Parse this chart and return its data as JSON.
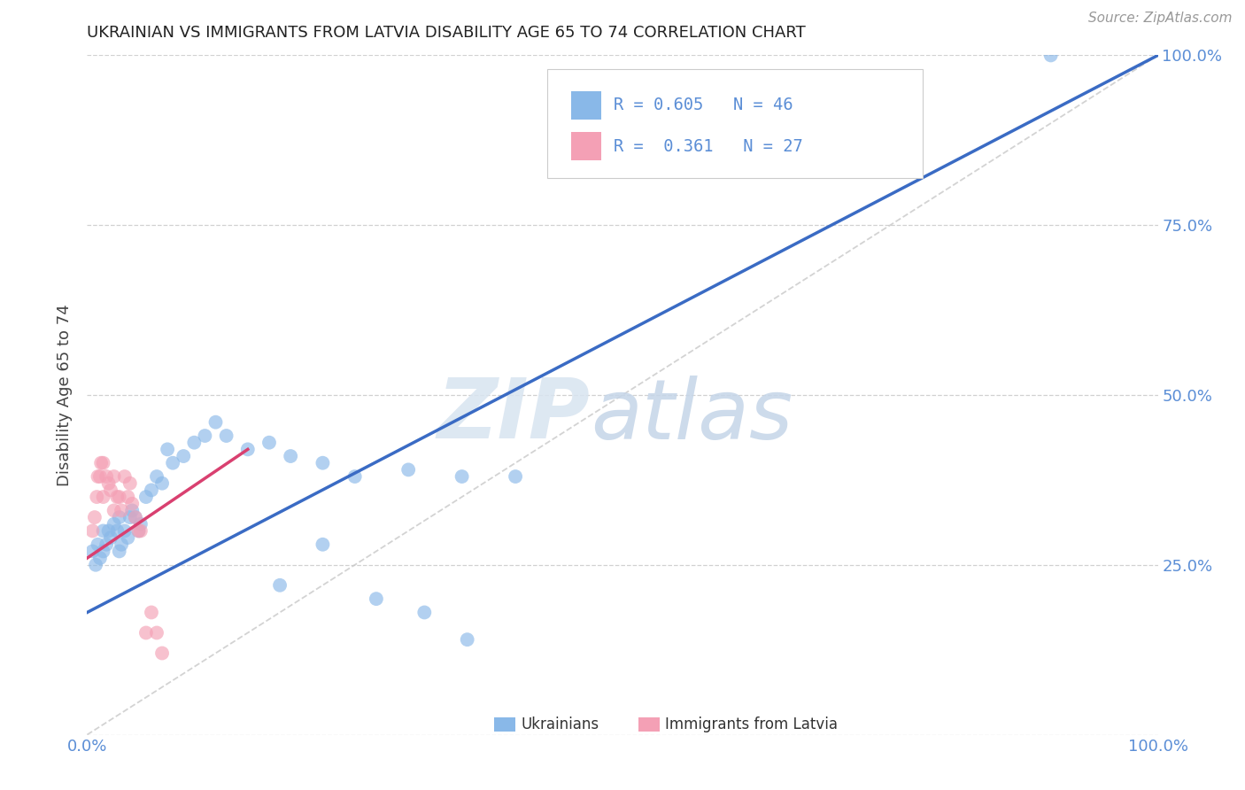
{
  "title": "UKRAINIAN VS IMMIGRANTS FROM LATVIA DISABILITY AGE 65 TO 74 CORRELATION CHART",
  "source": "Source: ZipAtlas.com",
  "ylabel": "Disability Age 65 to 74",
  "xlim": [
    0.0,
    1.0
  ],
  "ylim": [
    0.0,
    1.0
  ],
  "R_blue": 0.605,
  "N_blue": 46,
  "R_pink": 0.361,
  "N_pink": 27,
  "blue_color": "#89B8E8",
  "pink_color": "#F4A0B5",
  "blue_line_color": "#3A6BC4",
  "pink_line_color": "#D94070",
  "diagonal_color": "#C8C8C8",
  "legend_label_blue": "Ukrainians",
  "legend_label_pink": "Immigrants from Latvia",
  "watermark_zip": "ZIP",
  "watermark_atlas": "atlas",
  "background_color": "#FFFFFF",
  "grid_color": "#CCCCCC",
  "title_color": "#222222",
  "axis_label_color": "#444444",
  "tick_color": "#5B8ED6",
  "blue_x": [
    0.005,
    0.008,
    0.01,
    0.012,
    0.015,
    0.015,
    0.018,
    0.02,
    0.022,
    0.025,
    0.028,
    0.03,
    0.03,
    0.032,
    0.035,
    0.038,
    0.04,
    0.042,
    0.045,
    0.048,
    0.05,
    0.055,
    0.06,
    0.065,
    0.07,
    0.075,
    0.08,
    0.09,
    0.1,
    0.11,
    0.12,
    0.13,
    0.15,
    0.17,
    0.19,
    0.22,
    0.25,
    0.3,
    0.35,
    0.4,
    0.22,
    0.18,
    0.27,
    0.9,
    0.315,
    0.355
  ],
  "blue_y": [
    0.27,
    0.25,
    0.28,
    0.26,
    0.3,
    0.27,
    0.28,
    0.3,
    0.29,
    0.31,
    0.3,
    0.32,
    0.27,
    0.28,
    0.3,
    0.29,
    0.32,
    0.33,
    0.32,
    0.3,
    0.31,
    0.35,
    0.36,
    0.38,
    0.37,
    0.42,
    0.4,
    0.41,
    0.43,
    0.44,
    0.46,
    0.44,
    0.42,
    0.43,
    0.41,
    0.4,
    0.38,
    0.39,
    0.38,
    0.38,
    0.28,
    0.22,
    0.2,
    1.0,
    0.18,
    0.14
  ],
  "pink_x": [
    0.005,
    0.007,
    0.009,
    0.01,
    0.012,
    0.013,
    0.015,
    0.015,
    0.018,
    0.02,
    0.022,
    0.025,
    0.025,
    0.028,
    0.03,
    0.032,
    0.035,
    0.038,
    0.04,
    0.042,
    0.045,
    0.048,
    0.05,
    0.055,
    0.06,
    0.065,
    0.07
  ],
  "pink_y": [
    0.3,
    0.32,
    0.35,
    0.38,
    0.38,
    0.4,
    0.4,
    0.35,
    0.38,
    0.37,
    0.36,
    0.38,
    0.33,
    0.35,
    0.35,
    0.33,
    0.38,
    0.35,
    0.37,
    0.34,
    0.32,
    0.3,
    0.3,
    0.15,
    0.18,
    0.15,
    0.12
  ]
}
